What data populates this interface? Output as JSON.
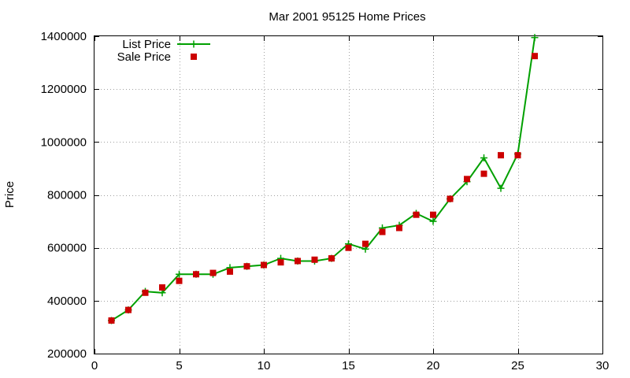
{
  "chart_data": {
    "type": "line",
    "title": "Mar 2001 95125 Home Prices",
    "xlabel": "",
    "ylabel": "Price",
    "xlim": [
      0,
      30
    ],
    "ylim": [
      200000,
      1400000
    ],
    "xticks": [
      0,
      5,
      10,
      15,
      20,
      25,
      30
    ],
    "yticks": [
      200000,
      400000,
      600000,
      800000,
      1000000,
      1200000,
      1400000
    ],
    "grid": true,
    "legend_position": "top-left",
    "series": [
      {
        "name": "List Price",
        "style": "line-plus",
        "color": "#00a000",
        "x": [
          1,
          2,
          3,
          4,
          5,
          6,
          7,
          8,
          9,
          10,
          11,
          12,
          13,
          14,
          15,
          16,
          17,
          18,
          19,
          20,
          21,
          22,
          23,
          24,
          25,
          26
        ],
        "values": [
          325000,
          365000,
          435000,
          430000,
          500000,
          500000,
          500000,
          525000,
          530000,
          535000,
          560000,
          550000,
          550000,
          560000,
          615000,
          595000,
          675000,
          685000,
          730000,
          700000,
          785000,
          850000,
          940000,
          825000,
          955000,
          1395000
        ]
      },
      {
        "name": "Sale Price",
        "style": "square",
        "color": "#cc0000",
        "x": [
          1,
          2,
          3,
          4,
          5,
          6,
          7,
          8,
          9,
          10,
          11,
          12,
          13,
          14,
          15,
          16,
          17,
          18,
          19,
          20,
          21,
          22,
          23,
          24,
          25,
          26
        ],
        "values": [
          325000,
          365000,
          430000,
          450000,
          475000,
          500000,
          505000,
          510000,
          530000,
          535000,
          545000,
          550000,
          555000,
          560000,
          600000,
          615000,
          660000,
          675000,
          725000,
          725000,
          785000,
          860000,
          880000,
          950000,
          950000,
          1325000
        ]
      }
    ]
  }
}
